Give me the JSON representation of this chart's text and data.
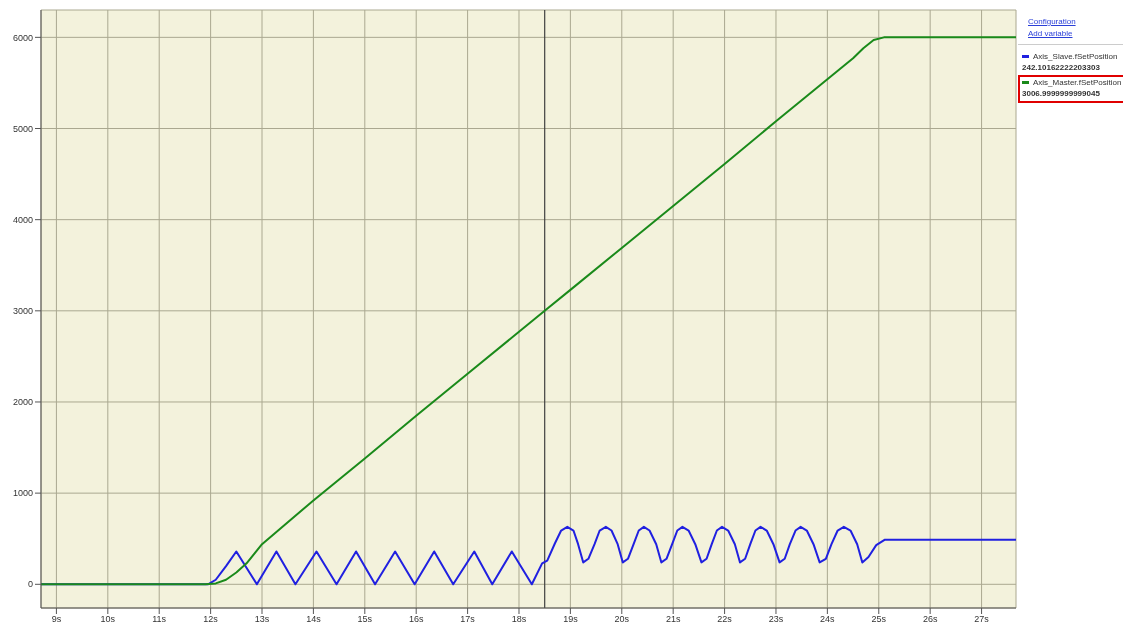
{
  "chart_data": {
    "type": "line",
    "xlim": [
      8.7,
      27.67
    ],
    "xticks": [
      {
        "value": 9,
        "label": "9s"
      },
      {
        "value": 10,
        "label": "10s"
      },
      {
        "value": 11,
        "label": "11s"
      },
      {
        "value": 12,
        "label": "12s"
      },
      {
        "value": 13,
        "label": "13s"
      },
      {
        "value": 14,
        "label": "14s"
      },
      {
        "value": 15,
        "label": "15s"
      },
      {
        "value": 16,
        "label": "16s"
      },
      {
        "value": 17,
        "label": "17s"
      },
      {
        "value": 18,
        "label": "18s"
      },
      {
        "value": 19,
        "label": "19s"
      },
      {
        "value": 20,
        "label": "20s"
      },
      {
        "value": 21,
        "label": "21s"
      },
      {
        "value": 22,
        "label": "22s"
      },
      {
        "value": 23,
        "label": "23s"
      },
      {
        "value": 24,
        "label": "24s"
      },
      {
        "value": 25,
        "label": "25s"
      },
      {
        "value": 26,
        "label": "26s"
      },
      {
        "value": 27,
        "label": "27s"
      }
    ],
    "ylim": [
      -260,
      6300
    ],
    "yticks": [
      0,
      1000,
      2000,
      3000,
      4000,
      5000,
      6000
    ],
    "grid": true,
    "legend": "top right",
    "marker": "none",
    "line_style": "solid",
    "ref_lines": [
      {
        "axis": "x",
        "value": 18.5,
        "color": "#404040"
      }
    ],
    "annotations": [
      "Configuration",
      "Add variable",
      "242.10162222203303",
      "3006.9999999999045"
    ],
    "series": [
      {
        "name": "Axis_Slave.fSetPosition",
        "color": "#2020e0",
        "x": [
          8.7,
          11.95,
          12.1,
          12.3,
          12.5,
          12.9,
          13.28,
          13.65,
          14.06,
          14.45,
          14.83,
          15.2,
          15.59,
          15.97,
          16.35,
          16.72,
          17.13,
          17.48,
          17.86,
          18.25,
          18.45,
          18.55,
          18.7,
          18.82,
          18.94,
          19.06,
          19.15,
          19.25,
          19.35,
          19.47,
          19.57,
          19.69,
          19.8,
          19.92,
          20.02,
          20.12,
          20.23,
          20.33,
          20.43,
          20.54,
          20.67,
          20.77,
          20.87,
          20.98,
          21.08,
          21.18,
          21.3,
          21.43,
          21.55,
          21.65,
          21.75,
          21.85,
          21.95,
          22.07,
          22.2,
          22.3,
          22.4,
          22.5,
          22.6,
          22.7,
          22.82,
          22.95,
          23.07,
          23.17,
          23.27,
          23.38,
          23.48,
          23.6,
          23.73,
          23.85,
          23.97,
          24.08,
          24.2,
          24.32,
          24.45,
          24.58,
          24.68,
          24.8,
          24.95,
          25.12,
          27.67
        ],
        "values": [
          0,
          0,
          50,
          200,
          360,
          0,
          360,
          0,
          360,
          0,
          360,
          0,
          360,
          0,
          360,
          0,
          360,
          0,
          360,
          0,
          230,
          260,
          450,
          590,
          630,
          590,
          440,
          240,
          280,
          440,
          590,
          630,
          590,
          440,
          240,
          280,
          440,
          590,
          630,
          590,
          440,
          240,
          280,
          440,
          590,
          630,
          590,
          440,
          240,
          280,
          440,
          590,
          630,
          590,
          440,
          240,
          280,
          440,
          590,
          630,
          590,
          440,
          240,
          280,
          440,
          590,
          630,
          590,
          440,
          240,
          280,
          440,
          590,
          630,
          590,
          440,
          240,
          300,
          430,
          490,
          490
        ]
      },
      {
        "name": "Axis_Master.fSetPosition",
        "color": "#1a8a1a",
        "x": [
          8.7,
          11.9,
          12.1,
          12.3,
          12.5,
          12.7,
          13,
          14,
          15,
          16,
          17,
          18,
          18.5,
          19,
          20,
          21,
          22,
          23,
          24,
          24.5,
          24.7,
          24.9,
          25.1,
          27.67
        ],
        "values": [
          0,
          0,
          10,
          50,
          130,
          230,
          440,
          920,
          1380,
          1850,
          2310,
          2770,
          3000,
          3230,
          3690,
          4150,
          4610,
          5080,
          5540,
          5770,
          5880,
          5970,
          6000,
          6000
        ]
      }
    ]
  }
}
